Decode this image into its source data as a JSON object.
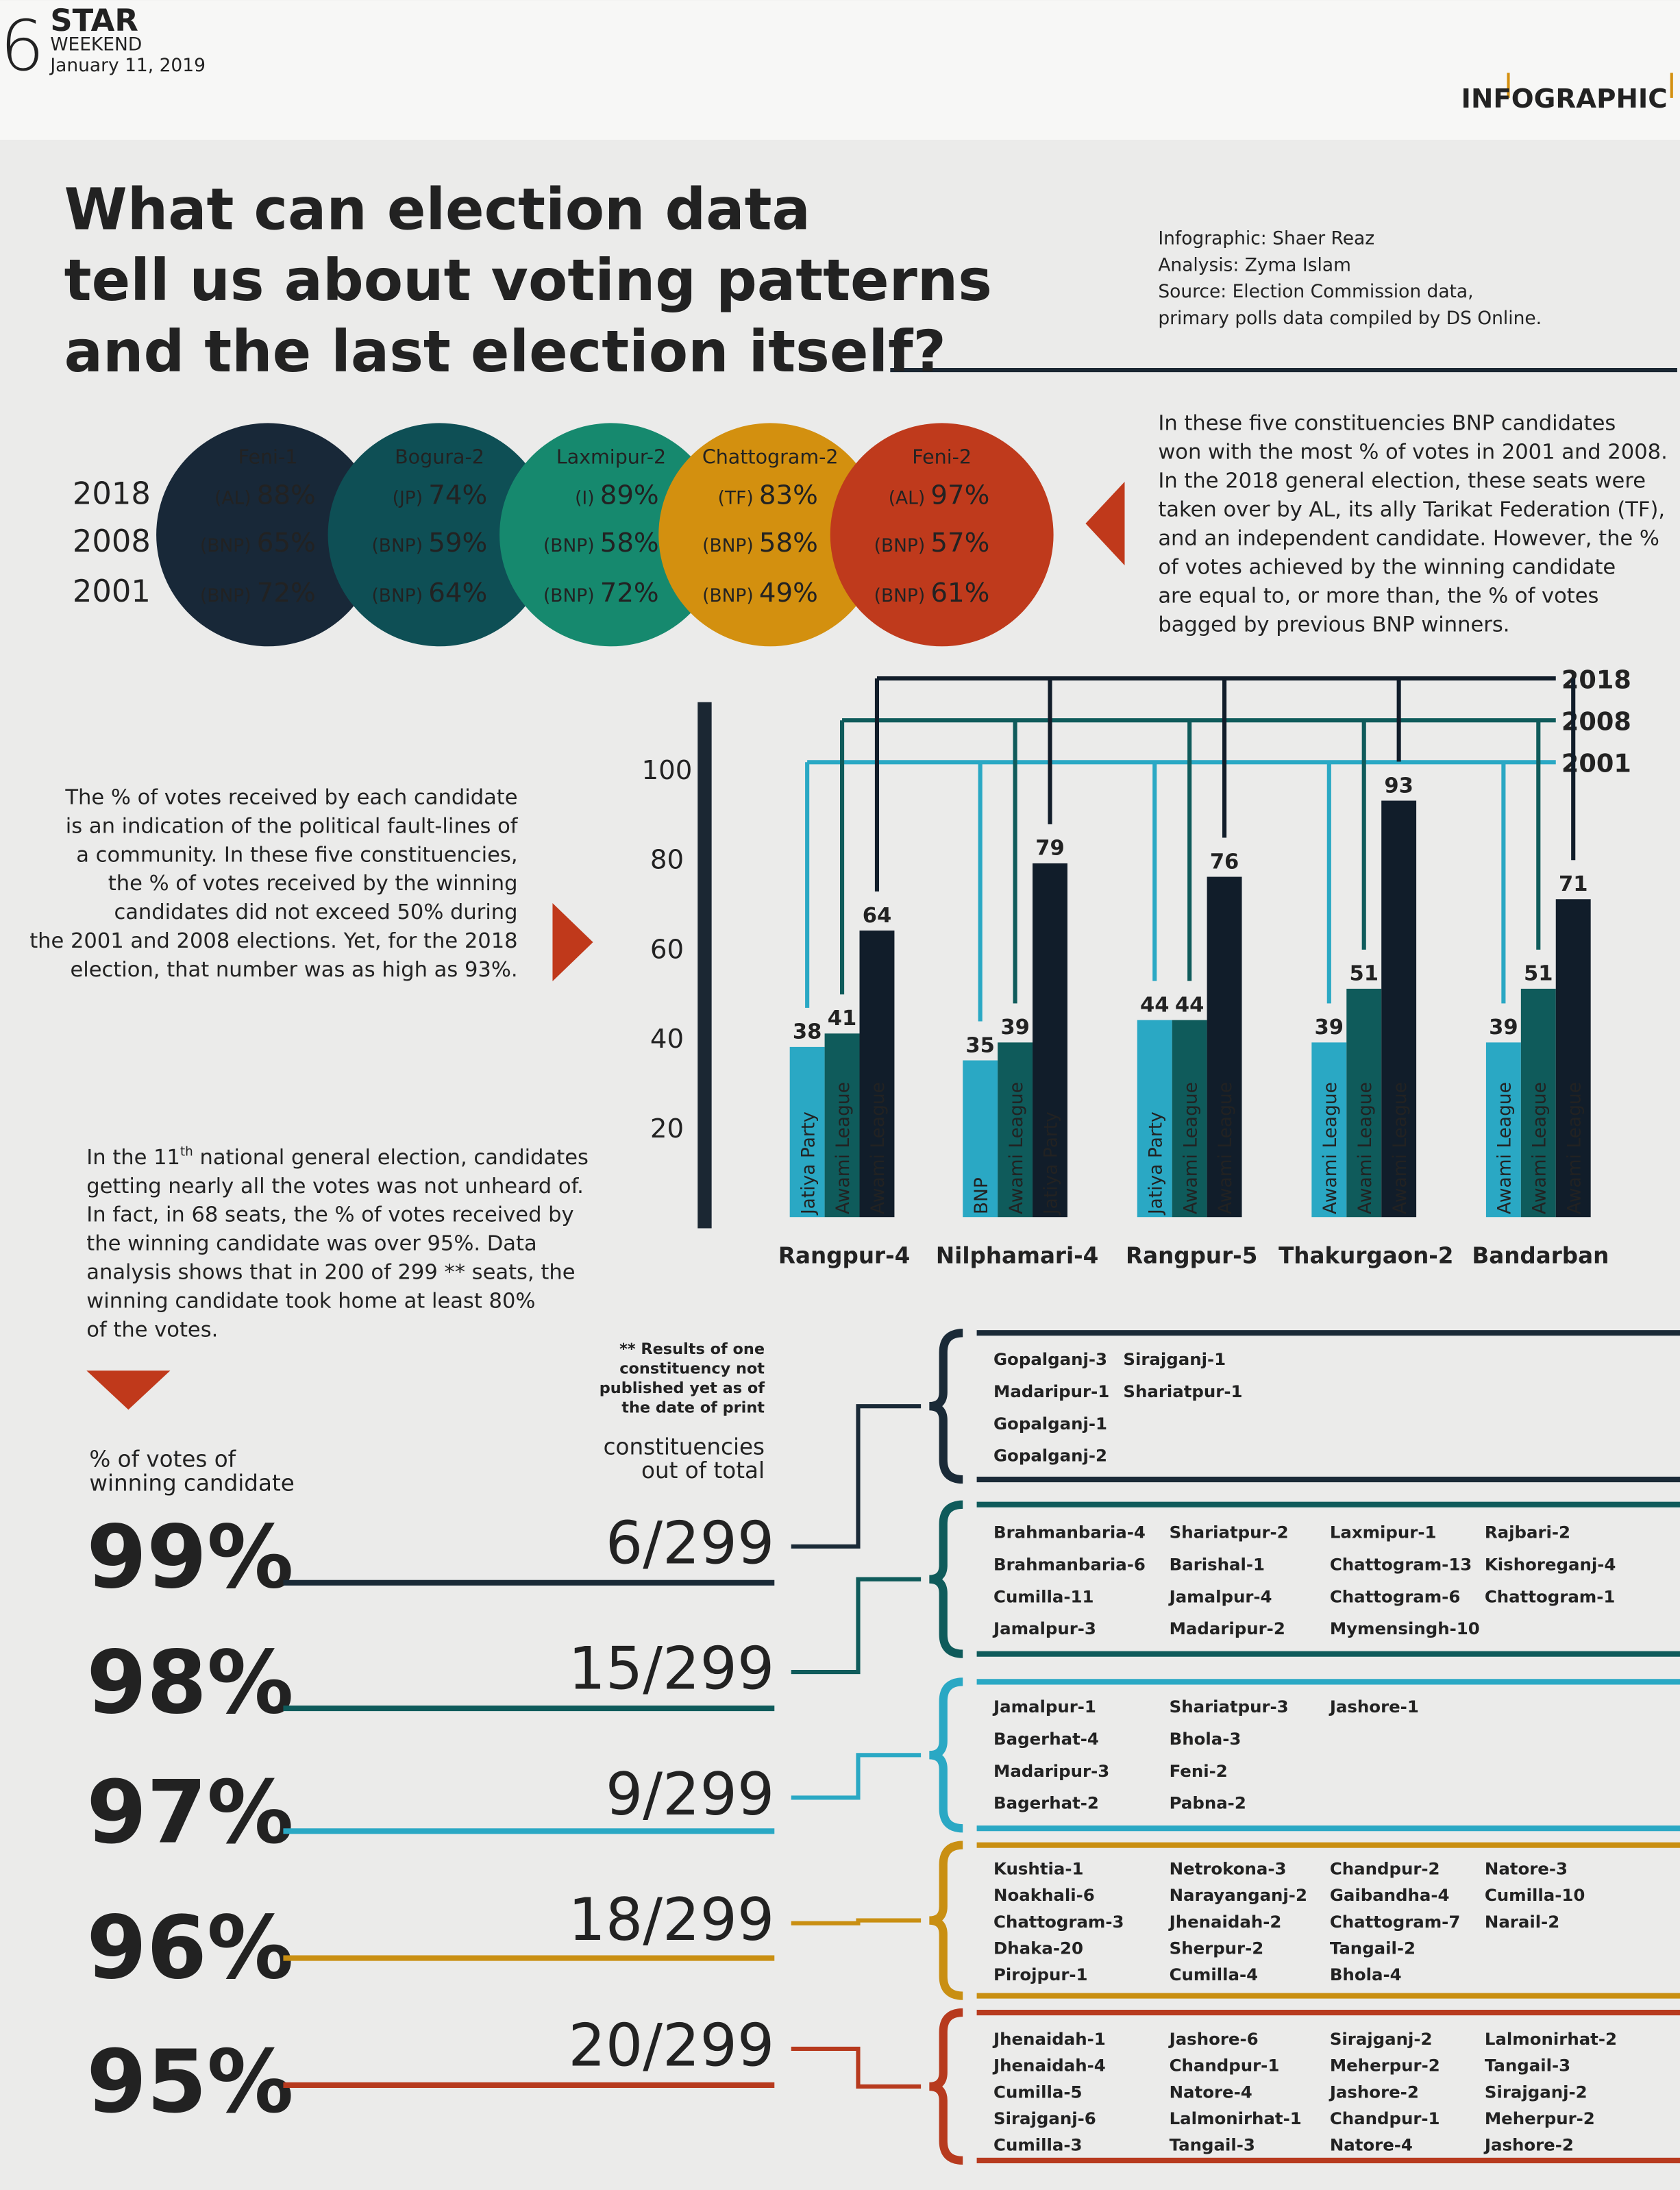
{
  "header": {
    "page_number": "6",
    "brand": "STAR",
    "brand_sub": "WEEKEND",
    "date": "January 11, 2019",
    "section": "INFOGRAPHIC"
  },
  "title": [
    "What can election data",
    "tell us about voting patterns",
    "and the last election itself?"
  ],
  "credits": [
    "Infographic: Shaer Reaz",
    "Analysis: Zyma Islam",
    "Source: Election Commission data,",
    "primary polls data compiled by DS Online."
  ],
  "circles": {
    "years": [
      "2018",
      "2008",
      "2001"
    ],
    "items": [
      {
        "name": "Feni-1",
        "color": "#182838",
        "rows": [
          {
            "party": "(AL)",
            "value": "88%"
          },
          {
            "party": "(BNP)",
            "value": "65%"
          },
          {
            "party": "(BNP)",
            "value": "72%"
          }
        ]
      },
      {
        "name": "Bogura-2",
        "color": "#0e4f55",
        "rows": [
          {
            "party": "(JP)",
            "value": "74%"
          },
          {
            "party": "(BNP)",
            "value": "59%"
          },
          {
            "party": "(BNP)",
            "value": "64%"
          }
        ]
      },
      {
        "name": "Laxmipur-2",
        "color": "#16896e",
        "rows": [
          {
            "party": "(I)",
            "value": "89%"
          },
          {
            "party": "(BNP)",
            "value": "58%"
          },
          {
            "party": "(BNP)",
            "value": "72%"
          }
        ]
      },
      {
        "name": "Chattogram-2",
        "color": "#d3900f",
        "rows": [
          {
            "party": "(TF)",
            "value": "83%"
          },
          {
            "party": "(BNP)",
            "value": "58%"
          },
          {
            "party": "(BNP)",
            "value": "49%"
          }
        ]
      },
      {
        "name": "Feni-2",
        "color": "#bf3a1c",
        "rows": [
          {
            "party": "(AL)",
            "value": "97%"
          },
          {
            "party": "(BNP)",
            "value": "57%"
          },
          {
            "party": "(BNP)",
            "value": "61%"
          }
        ]
      }
    ],
    "note": [
      "In these five constituencies BNP candidates",
      "won with the most % of votes in 2001 and 2008.",
      "In the 2018 general election, these seats were",
      "taken over by AL, its ally Tarikat Federation (TF),",
      "and an independent candidate. However, the %",
      "of votes achieved by the winning candidate",
      "are equal to, or more than, the % of votes",
      "bagged by previous BNP winners."
    ]
  },
  "chart_note": [
    "The % of votes received by each candidate",
    "is an indication of the political fault-lines of",
    "a community. In these five constituencies,",
    "the % of votes received by the winning",
    "candidates did not exceed 50% during",
    "the 2001 and 2008 elections. Yet, for the 2018",
    "election, that number was as high as 93%."
  ],
  "chart_data": {
    "type": "bar",
    "categories": [
      "Rangpur-4",
      "Nilphamari-4",
      "Rangpur-5",
      "Thakurgaon-2",
      "Bandarban"
    ],
    "series": [
      {
        "name": "2001",
        "color": "#2aa8c4",
        "values": [
          38,
          35,
          44,
          39,
          39
        ],
        "parties": [
          "Jatiya Party",
          "BNP",
          "Jatiya Party",
          "Awami League",
          "Awami League"
        ]
      },
      {
        "name": "2008",
        "color": "#0f5b5b",
        "values": [
          41,
          39,
          44,
          51,
          51
        ],
        "parties": [
          "Awami League",
          "Awami League",
          "Awami League",
          "Awami League",
          "Awami League"
        ]
      },
      {
        "name": "2018",
        "color": "#111d2a",
        "values": [
          64,
          79,
          76,
          93,
          71
        ],
        "parties": [
          "Awami League",
          "Jatiya Party",
          "Awami League",
          "Awami League",
          "Awami League"
        ]
      }
    ],
    "ylim": [
      0,
      115
    ],
    "yticks": [
      20,
      40,
      60,
      80,
      100
    ]
  },
  "summary": {
    "lines": [
      {
        "pre": "In the 11",
        "sup": "th",
        "post": " national general election, candidates"
      },
      "getting nearly all the votes was not unheard of.",
      "In fact, in 68 seats, the % of votes received by",
      "the winning candidate was over 95%.  Data",
      "analysis shows that in 200 of 299 ** seats, the",
      "winning candidate took home at least 80%",
      "of the votes."
    ],
    "footnote": [
      "** Results of one",
      "constituency not",
      "published yet as of",
      "the date of print"
    ],
    "pct_header": [
      "% of votes of",
      "winning candidate"
    ],
    "count_header": [
      "constituencies",
      "out of total"
    ]
  },
  "rows": [
    {
      "pct": "99%",
      "count": "6/299",
      "color": "#1a2a37",
      "seats": [
        [
          "Gopalganj-3",
          "Madaripur-1",
          "Gopalganj-1",
          "Gopalganj-2"
        ],
        [
          "Sirajganj-1",
          "Shariatpur-1"
        ]
      ]
    },
    {
      "pct": "98%",
      "count": "15/299",
      "color": "#0f5b5b",
      "seats": [
        [
          "Brahmanbaria-4",
          "Brahmanbaria-6",
          "Cumilla-11",
          "Jamalpur-3"
        ],
        [
          "Shariatpur-2",
          "Barishal-1",
          "Jamalpur-4",
          "Madaripur-2"
        ],
        [
          "Laxmipur-1",
          "Chattogram-13",
          "Chattogram-6",
          "Mymensingh-10"
        ],
        [
          "Rajbari-2",
          "Kishoreganj-4",
          "Chattogram-1"
        ]
      ]
    },
    {
      "pct": "97%",
      "count": "9/299",
      "color": "#2aa8c4",
      "seats": [
        [
          "Jamalpur-1",
          "Bagerhat-4",
          "Madaripur-3",
          "Bagerhat-2"
        ],
        [
          "Shariatpur-3",
          "Bhola-3",
          "Feni-2",
          "Pabna-2"
        ],
        [
          "Jashore-1"
        ]
      ]
    },
    {
      "pct": "96%",
      "count": "18/299",
      "color": "#c98f12",
      "seats": [
        [
          "Kushtia-1",
          "Noakhali-6",
          "Chattogram-3",
          "Dhaka-20",
          "Pirojpur-1"
        ],
        [
          "Netrokona-3",
          "Narayanganj-2",
          "Jhenaidah-2",
          "Sherpur-2",
          "Cumilla-4"
        ],
        [
          "Chandpur-2",
          "Gaibandha-4",
          "Chattogram-7",
          "Tangail-2",
          "Bhola-4"
        ],
        [
          "Natore-3",
          "Cumilla-10",
          "Narail-2"
        ]
      ]
    },
    {
      "pct": "95%",
      "count": "20/299",
      "color": "#b73a1e",
      "seats": [
        [
          "Jhenaidah-1",
          "Jhenaidah-4",
          "Cumilla-5",
          "Sirajganj-6",
          "Cumilla-3"
        ],
        [
          "Jashore-6",
          "Chandpur-1",
          "Natore-4",
          "Lalmonirhat-1",
          "Tangail-3"
        ],
        [
          "Sirajganj-2",
          "Meherpur-2",
          "Jashore-2",
          "Chandpur-1",
          "Natore-4"
        ],
        [
          "Lalmonirhat-2",
          "Tangail-3",
          "Sirajganj-2",
          "Meherpur-2",
          "Jashore-2"
        ]
      ]
    }
  ]
}
